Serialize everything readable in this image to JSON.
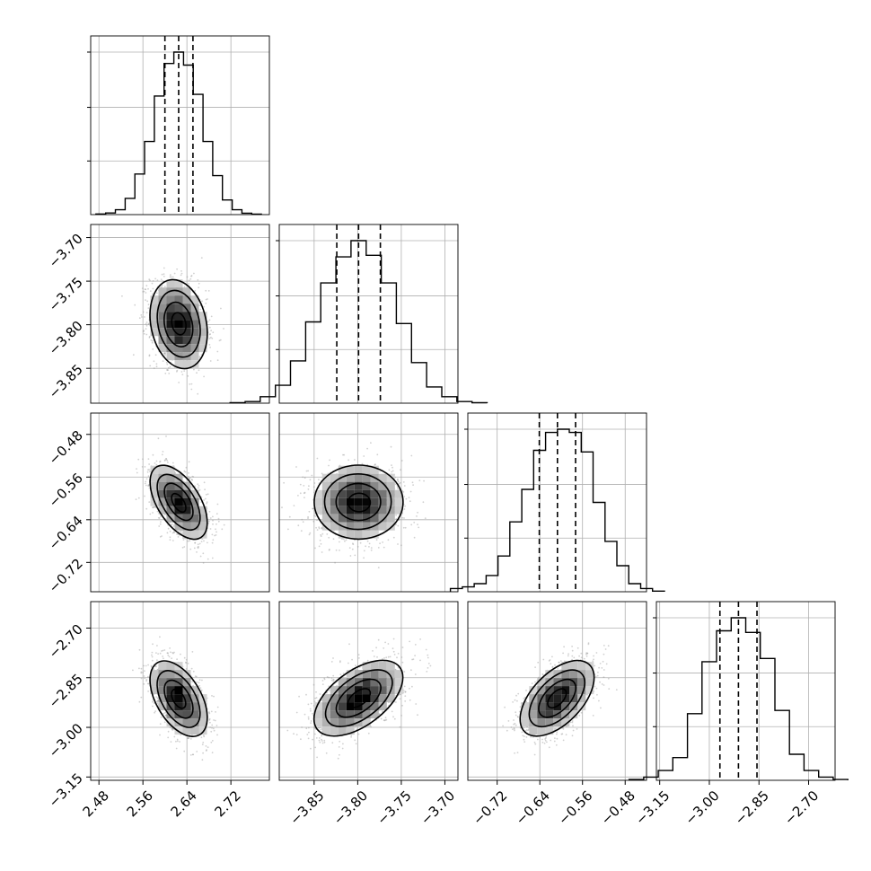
{
  "chart_data": {
    "type": "corner",
    "title": "",
    "grid": true,
    "colors": {
      "line": "#000000",
      "grid": "#b0b0b0",
      "scatter": "#999999",
      "frame": "#000000"
    },
    "parameters": [
      {
        "index": 0,
        "label": "",
        "lim": [
          2.465,
          2.79
        ],
        "ticks": [
          "2.48",
          "2.56",
          "2.64",
          "2.72"
        ],
        "tick_values": [
          2.48,
          2.56,
          2.64,
          2.72
        ],
        "mean": 2.625,
        "quantiles": [
          2.6,
          2.625,
          2.651
        ]
      },
      {
        "index": 1,
        "label": "",
        "lim": [
          -3.89,
          -3.685
        ],
        "ticks": [
          "−3.70",
          "−3.75",
          "−3.80",
          "−3.85"
        ],
        "tick_values": [
          -3.7,
          -3.75,
          -3.8,
          -3.85
        ],
        "mean": -3.799,
        "quantiles": [
          -3.824,
          -3.799,
          -3.774
        ]
      },
      {
        "index": 2,
        "label": "",
        "lim": [
          -0.775,
          -0.44
        ],
        "ticks": [
          "−0.48",
          "−0.56",
          "−0.64",
          "−0.72"
        ],
        "tick_values": [
          -0.48,
          -0.56,
          -0.64,
          -0.72
        ],
        "mean": -0.607,
        "quantiles": [
          -0.641,
          -0.607,
          -0.573
        ]
      },
      {
        "index": 3,
        "label": "",
        "lim": [
          -3.16,
          -2.62
        ],
        "ticks": [
          "−2.70",
          "−2.85",
          "−3.00",
          "−3.15"
        ],
        "tick_values": [
          -2.7,
          -2.85,
          -3.0,
          -3.15
        ],
        "mean": -2.912,
        "quantiles": [
          -2.968,
          -2.912,
          -2.856
        ]
      }
    ],
    "x_tick_labels_bottom": [
      [
        "2.48",
        "2.56",
        "2.64",
        "2.72"
      ],
      [
        "−3.85",
        "−3.80",
        "−3.75",
        "−3.70"
      ],
      [
        "−0.72",
        "−0.64",
        "−0.56",
        "−0.48"
      ],
      [
        "−3.15",
        "−3.00",
        "−2.85",
        "−2.70"
      ]
    ],
    "y_tick_labels_left": [
      [],
      [
        "−3.70",
        "−3.75",
        "−3.80",
        "−3.85"
      ],
      [
        "−0.48",
        "−0.56",
        "−0.64",
        "−0.72"
      ],
      [
        "−2.70",
        "−2.85",
        "−3.00",
        "−3.15"
      ]
    ],
    "histograms": [
      [
        0.004,
        0.01,
        0.03,
        0.1,
        0.25,
        0.45,
        0.73,
        0.93,
        1.0,
        0.92,
        0.74,
        0.45,
        0.24,
        0.09,
        0.03,
        0.009,
        0.003
      ],
      [
        0.003,
        0.01,
        0.04,
        0.11,
        0.26,
        0.5,
        0.74,
        0.9,
        1.0,
        0.91,
        0.74,
        0.49,
        0.25,
        0.1,
        0.04,
        0.01,
        0.003
      ],
      [
        0.02,
        0.03,
        0.05,
        0.1,
        0.22,
        0.43,
        0.63,
        0.87,
        0.98,
        1.0,
        0.98,
        0.86,
        0.55,
        0.31,
        0.16,
        0.05,
        0.02,
        0.004
      ],
      [
        0.005,
        0.02,
        0.06,
        0.14,
        0.41,
        0.73,
        0.92,
        1.0,
        0.91,
        0.75,
        0.43,
        0.16,
        0.06,
        0.02,
        0.005
      ]
    ],
    "correlations": {
      "1,0": -0.2,
      "2,0": -0.55,
      "2,1": 0.0,
      "3,0": -0.5,
      "3,1": 0.55,
      "3,2": 0.55
    },
    "contour_levels_sigma": [
      0.5,
      1.0,
      1.5,
      2.0
    ]
  }
}
